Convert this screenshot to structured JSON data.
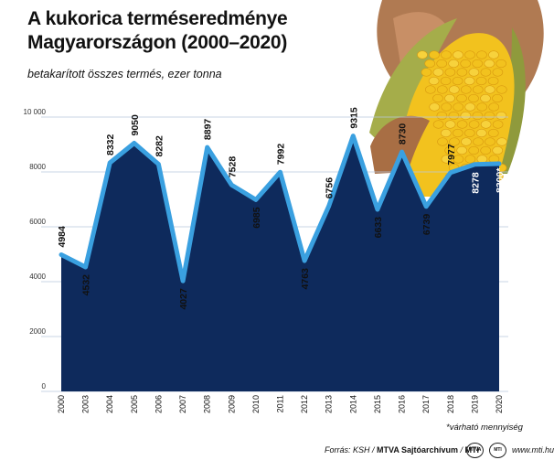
{
  "chart_data": {
    "type": "area",
    "title": "A kukorica terméseredménye Magyarországon (2000–2020)",
    "subtitle": "betakarított összes termés, ezer tonna",
    "x": [
      "2000",
      "2003",
      "2004",
      "2005",
      "2006",
      "2007",
      "2008",
      "2009",
      "2010",
      "2011",
      "2012",
      "2013",
      "2014",
      "2015",
      "2016",
      "2017",
      "2018",
      "2019",
      "2020"
    ],
    "values": [
      4984,
      4532,
      8332,
      9050,
      8282,
      4027,
      8897,
      7528,
      6985,
      7992,
      4763,
      6756,
      9315,
      6633,
      8730,
      6739,
      7977,
      8278,
      8300
    ],
    "data_labels": [
      "4984",
      "4532",
      "8332",
      "9050",
      "8282",
      "4027",
      "8897",
      "7528",
      "6985",
      "7992",
      "4763",
      "6756",
      "9315",
      "6633",
      "8730",
      "6739",
      "7977",
      "8278",
      "8300*"
    ],
    "y_ticks": [
      0,
      2000,
      4000,
      6000,
      8000,
      10000
    ],
    "y_tick_labels": [
      "0",
      "2000",
      "4000",
      "6000",
      "8000",
      "10 000"
    ],
    "ylim": [
      0,
      10000
    ],
    "grid": true,
    "footnote": "*várható mennyiség",
    "colors": {
      "fill": "#0e2a5c",
      "line": "#3aa0e0",
      "grid": "#b8c8de",
      "kernel": "#f2c21e",
      "husk": "#a5ad4a"
    }
  },
  "credit": {
    "source_prefix": "Forrás: KSH / ",
    "agency": "MTVA Sajtóarchívum",
    "separator": " / ",
    "outlet": "MTI",
    "logo_1": "MTVA",
    "logo_2": "MTI",
    "url": "www.mti.hu"
  },
  "photo": {
    "subject": "corn-cob-in-hand"
  }
}
